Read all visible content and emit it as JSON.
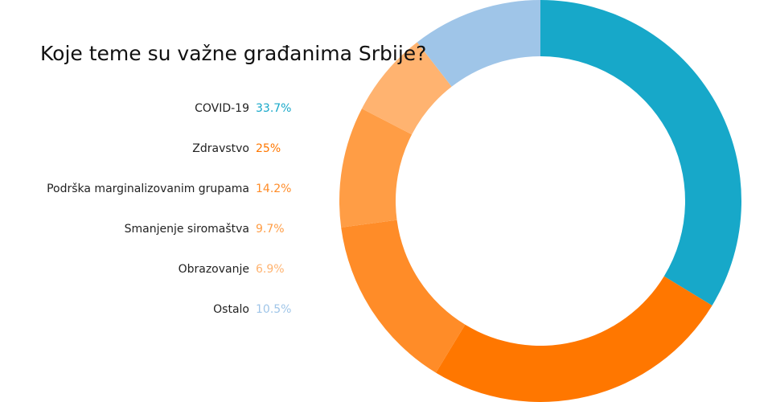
{
  "chart_data": {
    "type": "pie",
    "title": "Koje teme su važne građanima Srbije?",
    "categories": [
      "COVID-19",
      "Zdravstvo",
      "Podrška marginalizovanim grupama",
      "Smanjenje siromaštva",
      "Obrazovanje",
      "Ostalo"
    ],
    "values": [
      33.7,
      25,
      14.2,
      9.7,
      6.9,
      10.5
    ],
    "value_labels": [
      "33.7%",
      "25%",
      "14.2%",
      "9.7%",
      "6.9%",
      "10.5%"
    ],
    "colors": [
      "#17a8c9",
      "#ff7700",
      "#ff8c28",
      "#ff9d45",
      "#ffb370",
      "#9fc5e8"
    ]
  }
}
